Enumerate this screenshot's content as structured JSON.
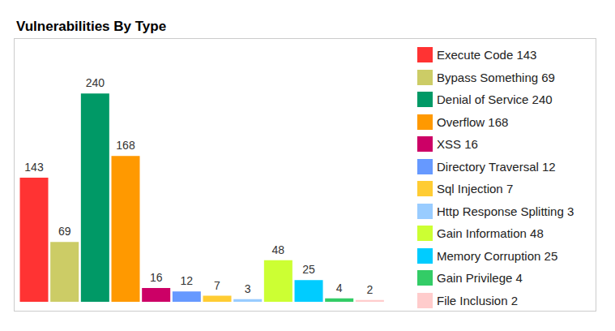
{
  "chart_data": {
    "type": "bar",
    "title": "Vulnerabilities By Type",
    "categories": [
      "Execute Code",
      "Bypass Something",
      "Denial of Service",
      "Overflow",
      "XSS",
      "Directory Traversal",
      "Sql Injection",
      "Http Response Splitting",
      "Gain Information",
      "Memory Corruption",
      "Gain Privilege",
      "File Inclusion"
    ],
    "values": [
      143,
      69,
      240,
      168,
      16,
      12,
      7,
      3,
      48,
      25,
      4,
      2
    ],
    "colors": [
      "#ff3333",
      "#cccc66",
      "#009966",
      "#ff9900",
      "#cc0066",
      "#6699ff",
      "#ffcc33",
      "#99ccff",
      "#ccff33",
      "#00ccff",
      "#33cc66",
      "#ffcccc"
    ],
    "ylim": [
      0,
      300
    ],
    "data_labels": true,
    "tick_labels": false,
    "legend": "right"
  }
}
